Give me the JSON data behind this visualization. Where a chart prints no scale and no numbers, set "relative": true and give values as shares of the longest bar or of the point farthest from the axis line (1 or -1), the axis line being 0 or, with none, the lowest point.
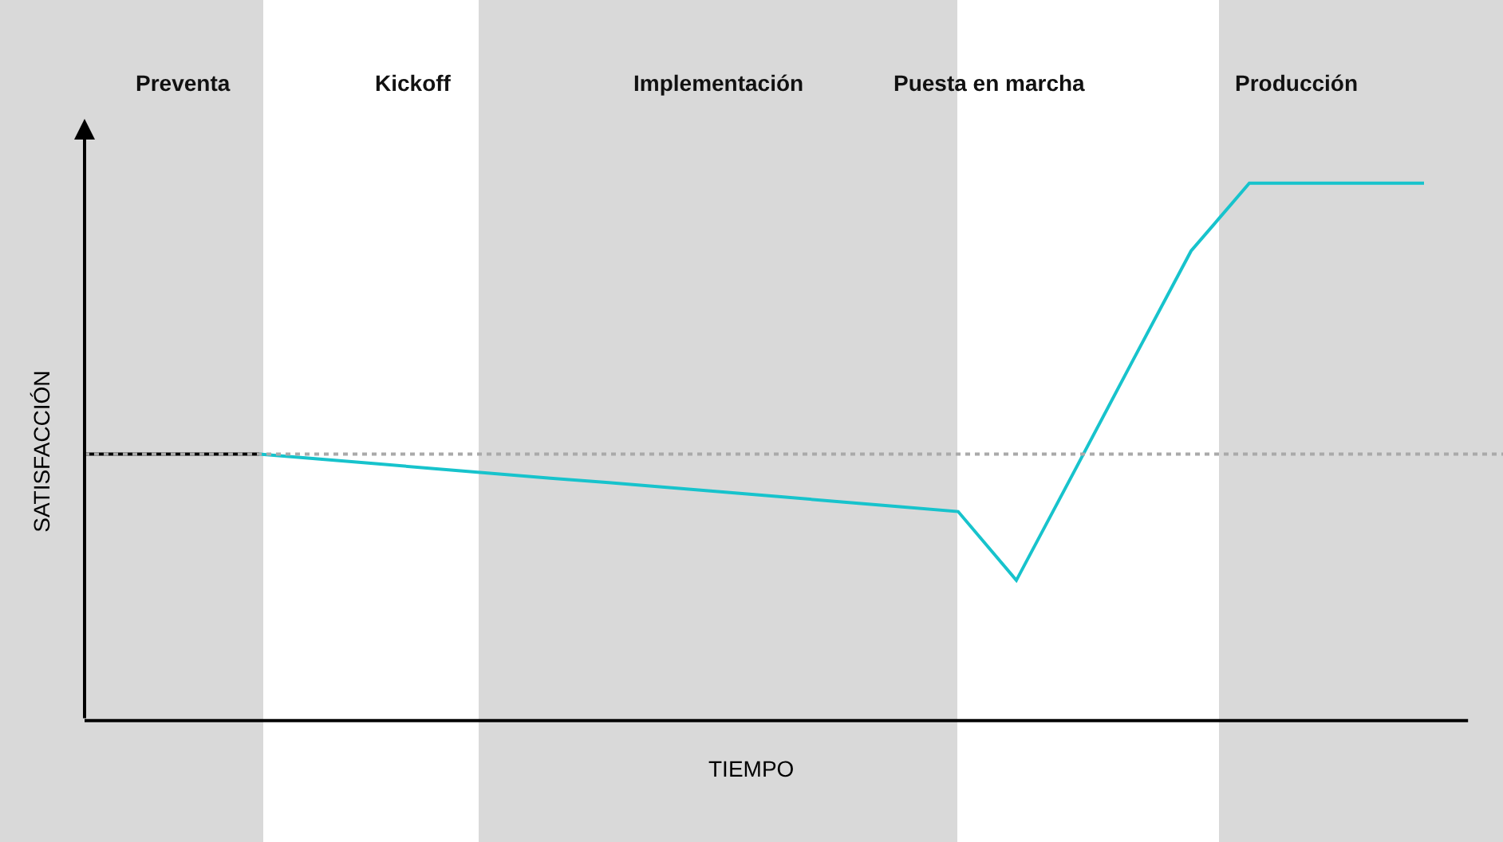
{
  "chart_data": {
    "type": "line",
    "relative": true,
    "xlabel": "TIEMPO",
    "ylabel": "SATISFACCIÓN",
    "categories": [
      null,
      null,
      null,
      null,
      null,
      null,
      null,
      null,
      null,
      null,
      null,
      null,
      null,
      null,
      null,
      null,
      null,
      null,
      null,
      null,
      null,
      null,
      null,
      null
    ],
    "grid": false,
    "legend": false,
    "marker": "none",
    "line_style": "solid",
    "series": [
      {
        "color": "#000000",
        "values": [
          0.496,
          0.496,
          0.496,
          0.496,
          null,
          null,
          null,
          null,
          null,
          null,
          null,
          null,
          null,
          null,
          null,
          null,
          null,
          null,
          null,
          null,
          null,
          null,
          null,
          null
        ]
      },
      {
        "color": "#17c3cc",
        "values": [
          null,
          null,
          null,
          0.496,
          0.487,
          0.478,
          0.469,
          0.46,
          0.451,
          0.443,
          0.434,
          0.425,
          0.416,
          0.407,
          0.398,
          0.389,
          0.261,
          0.465,
          0.67,
          0.874,
          1,
          1,
          1,
          1
        ]
      }
    ],
    "ref_lines": [
      {
        "axis": "y",
        "value": 0.496,
        "color": "#aaaaaa",
        "line_style": "dotted"
      }
    ],
    "annotations": [
      "Preventa",
      "Kickoff",
      "Implementación",
      "Puesta en marcha",
      "Producción"
    ]
  }
}
